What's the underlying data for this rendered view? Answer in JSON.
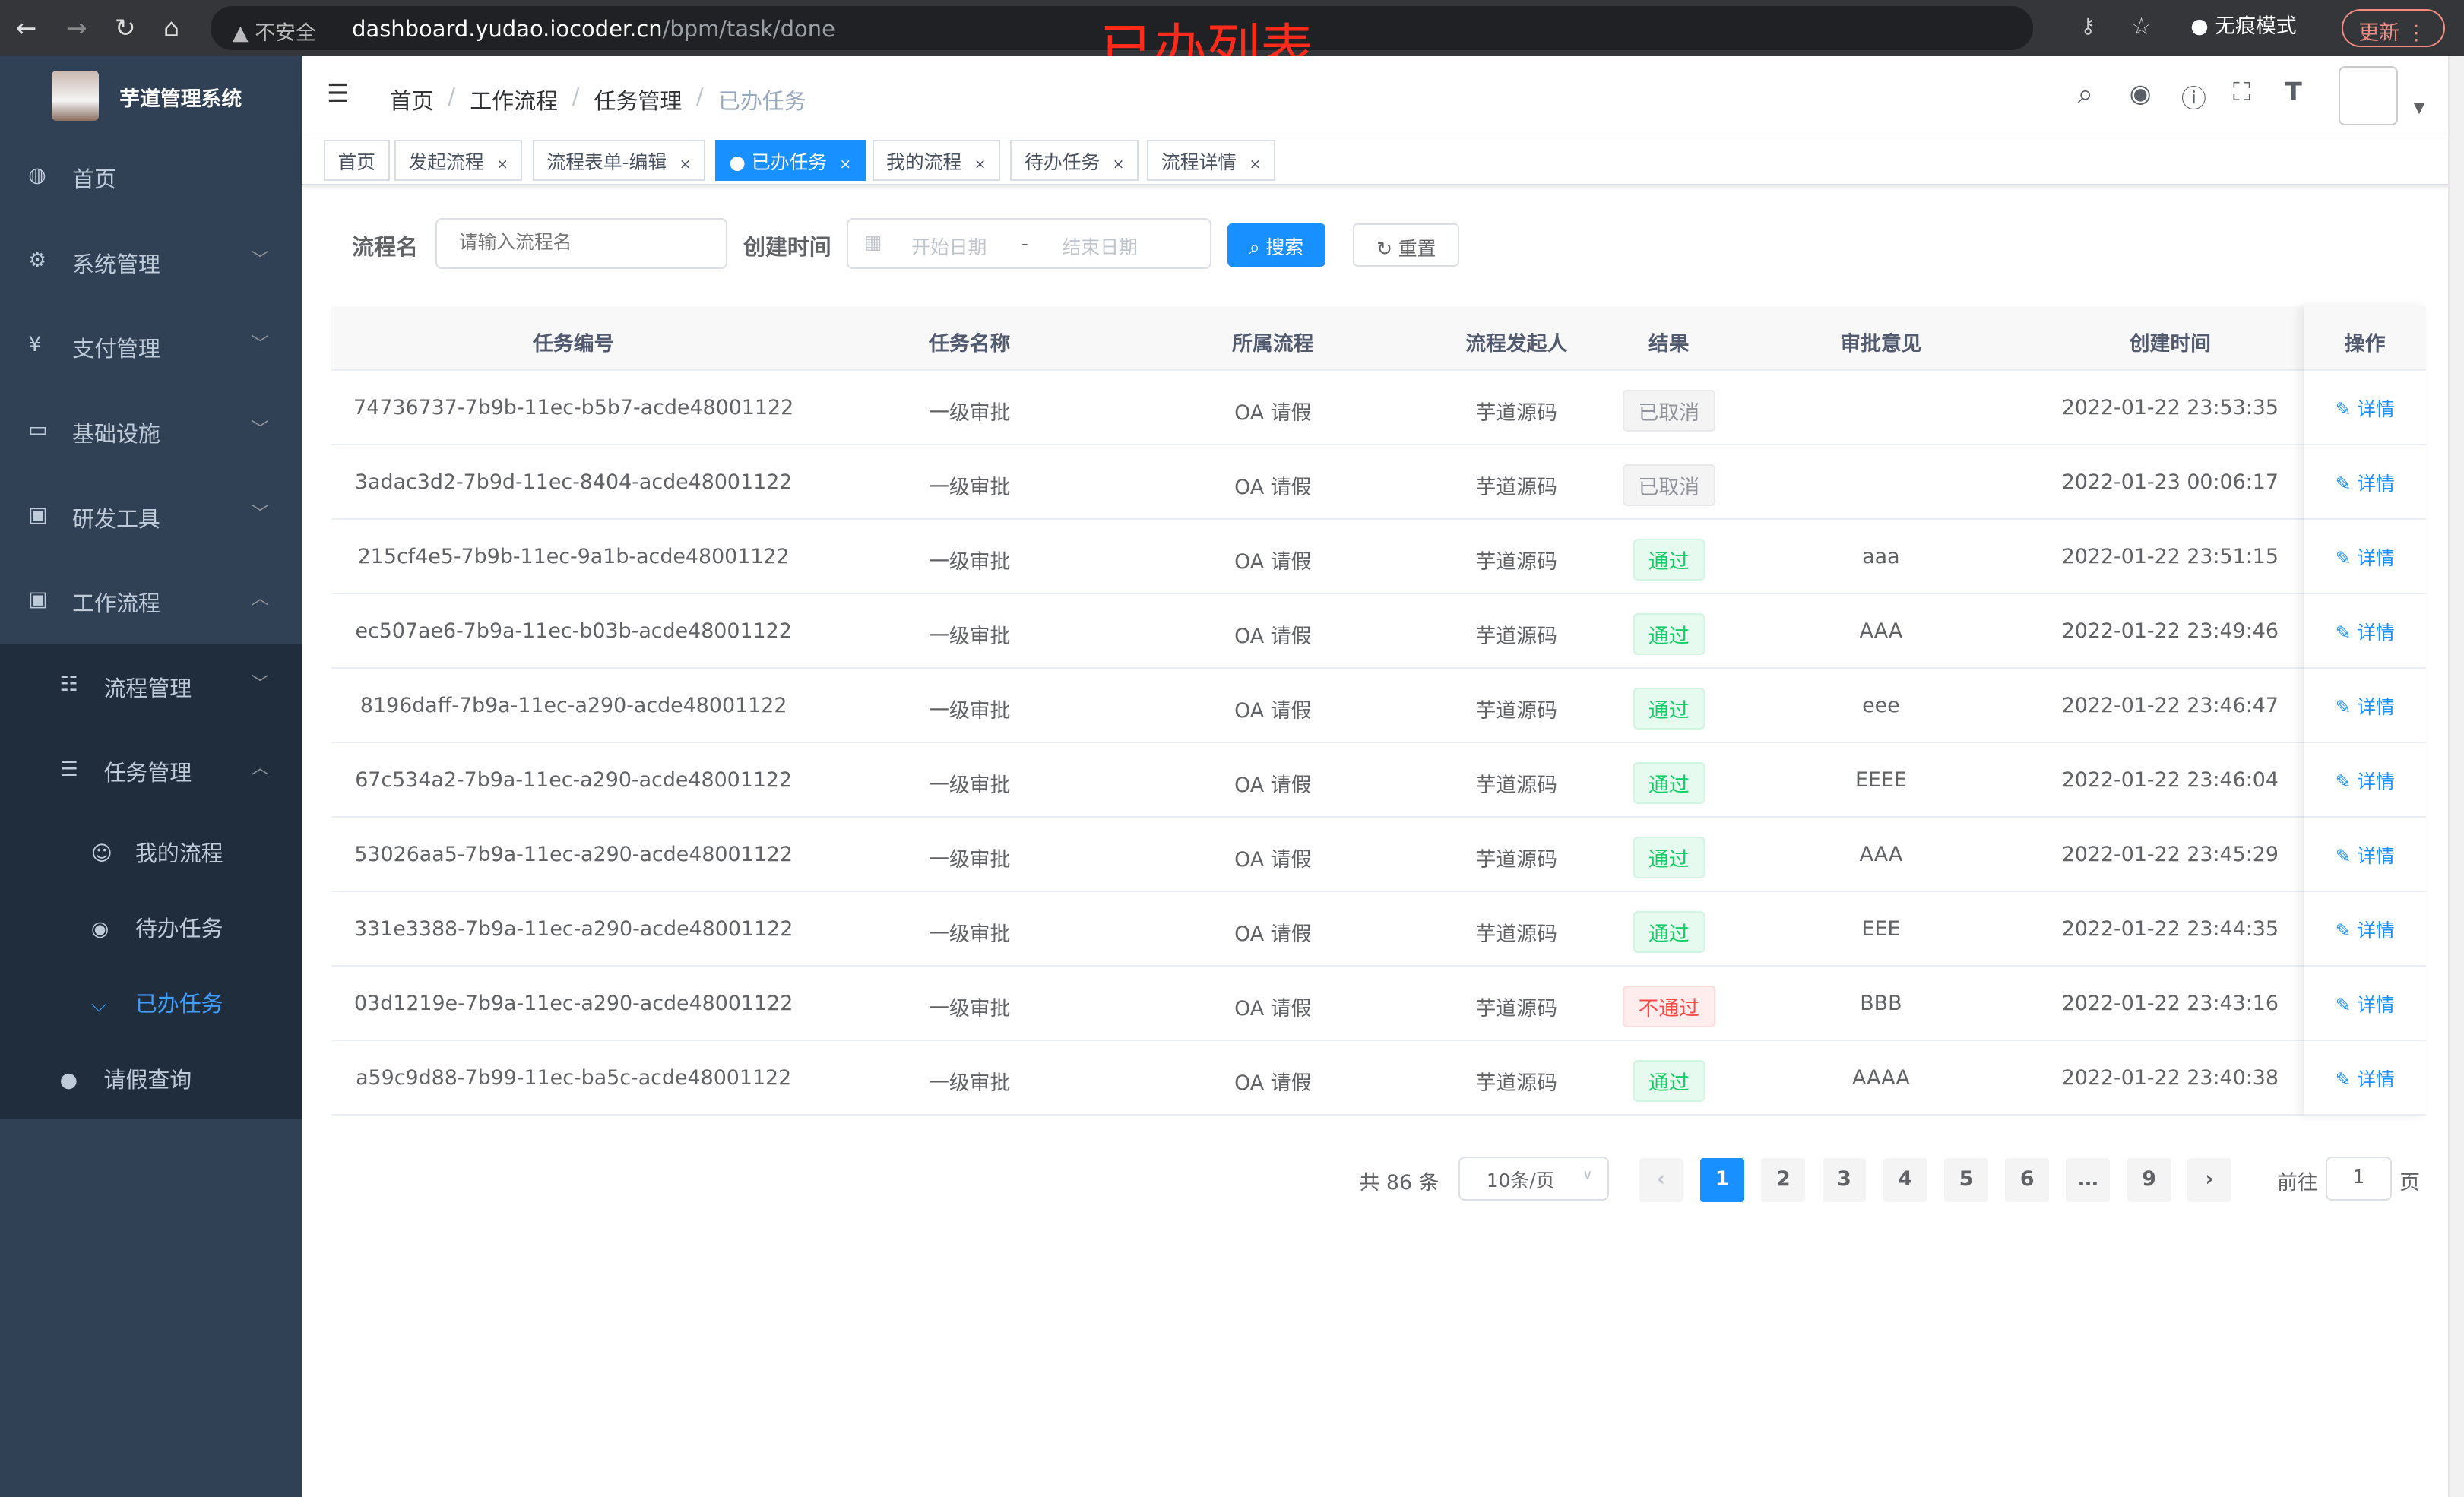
{
  "browser": {
    "security": "不安全",
    "url_host": "dashboard.yudao.iocoder.cn",
    "url_path": "/bpm/task/done",
    "incognito": "无痕模式",
    "update": "更新"
  },
  "annotation": "已办列表",
  "app": {
    "title": "芋道管理系统"
  },
  "sidebar": {
    "items": [
      {
        "label": "首页",
        "icon": "dashboard-icon"
      },
      {
        "label": "系统管理",
        "icon": "gear-icon"
      },
      {
        "label": "支付管理",
        "icon": "yen-icon"
      },
      {
        "label": "基础设施",
        "icon": "monitor-icon"
      },
      {
        "label": "研发工具",
        "icon": "toolbox-icon"
      },
      {
        "label": "工作流程",
        "icon": "toolbox-icon"
      }
    ],
    "sub": [
      {
        "label": "流程管理"
      },
      {
        "label": "任务管理"
      },
      {
        "label": "我的流程"
      },
      {
        "label": "待办任务"
      },
      {
        "label": "已办任务"
      },
      {
        "label": "请假查询"
      }
    ]
  },
  "breadcrumb": [
    "首页",
    "工作流程",
    "任务管理",
    "已办任务"
  ],
  "tags": [
    "首页",
    "发起流程",
    "流程表单-编辑",
    "已办任务",
    "我的流程",
    "待办任务",
    "流程详情"
  ],
  "search": {
    "name_label": "流程名",
    "name_placeholder": "请输入流程名",
    "time_label": "创建时间",
    "start_placeholder": "开始日期",
    "sep": "-",
    "end_placeholder": "结束日期",
    "search": "搜索",
    "reset": "重置"
  },
  "table": {
    "headers": [
      "任务编号",
      "任务名称",
      "所属流程",
      "流程发起人",
      "结果",
      "审批意见",
      "创建时间",
      "操作"
    ],
    "detail": "详情",
    "rows": [
      [
        "74736737-7b9b-11ec-b5b7-acde48001122",
        "一级审批",
        "OA 请假",
        "芋道源码",
        "已取消",
        "",
        "2022-01-22 23:53:35"
      ],
      [
        "3adac3d2-7b9d-11ec-8404-acde48001122",
        "一级审批",
        "OA 请假",
        "芋道源码",
        "已取消",
        "",
        "2022-01-23 00:06:17"
      ],
      [
        "215cf4e5-7b9b-11ec-9a1b-acde48001122",
        "一级审批",
        "OA 请假",
        "芋道源码",
        "通过",
        "aaa",
        "2022-01-22 23:51:15"
      ],
      [
        "ec507ae6-7b9a-11ec-b03b-acde48001122",
        "一级审批",
        "OA 请假",
        "芋道源码",
        "通过",
        "AAA",
        "2022-01-22 23:49:46"
      ],
      [
        "8196daff-7b9a-11ec-a290-acde48001122",
        "一级审批",
        "OA 请假",
        "芋道源码",
        "通过",
        "eee",
        "2022-01-22 23:46:47"
      ],
      [
        "67c534a2-7b9a-11ec-a290-acde48001122",
        "一级审批",
        "OA 请假",
        "芋道源码",
        "通过",
        "EEEE",
        "2022-01-22 23:46:04"
      ],
      [
        "53026aa5-7b9a-11ec-a290-acde48001122",
        "一级审批",
        "OA 请假",
        "芋道源码",
        "通过",
        "AAA",
        "2022-01-22 23:45:29"
      ],
      [
        "331e3388-7b9a-11ec-a290-acde48001122",
        "一级审批",
        "OA 请假",
        "芋道源码",
        "通过",
        "EEE",
        "2022-01-22 23:44:35"
      ],
      [
        "03d1219e-7b9a-11ec-a290-acde48001122",
        "一级审批",
        "OA 请假",
        "芋道源码",
        "不通过",
        "BBB",
        "2022-01-22 23:43:16"
      ],
      [
        "a59c9d88-7b99-11ec-ba5c-acde48001122",
        "一级审批",
        "OA 请假",
        "芋道源码",
        "通过",
        "AAAA",
        "2022-01-22 23:40:38"
      ]
    ]
  },
  "pagination": {
    "total": "共 86 条",
    "page_size": "10条/页",
    "pages": [
      "1",
      "2",
      "3",
      "4",
      "5",
      "6",
      "…",
      "9"
    ],
    "current": "1",
    "goto_label": "前往",
    "goto_value": "1",
    "goto_suffix": "页"
  },
  "colors": {
    "primary": "#1890ff",
    "sidebar": "#304156",
    "submenu": "#1f2d3d",
    "success": "#13ce66",
    "danger": "#ff4949",
    "info": "#909399"
  }
}
